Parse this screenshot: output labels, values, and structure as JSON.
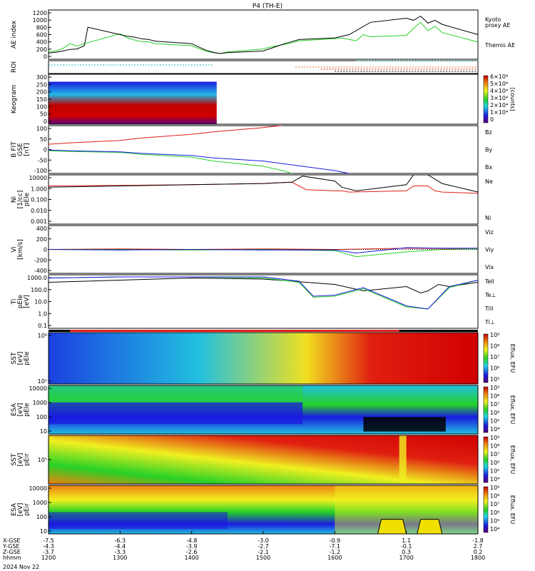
{
  "title": "P4 (TH-E)",
  "date_label": "2024 Nov 22",
  "colors": {
    "black": "#000000",
    "red": "#e0201a",
    "green": "#26d126",
    "blue": "#1a1ae0",
    "cyan": "#22b8b8",
    "orange": "#e07020"
  },
  "chart_data": [
    {
      "id": "ae",
      "type": "line",
      "ylabel": "AE index",
      "yticks": [
        "1200",
        "1000",
        "800",
        "600",
        "400",
        "200",
        "0"
      ],
      "ylim": [
        0,
        1200
      ],
      "legend": [
        {
          "label": "Kyoto",
          "color": "#26d126"
        },
        {
          "label": "proxy AE",
          "color": "#26d126"
        },
        {
          "label": "Themis AE",
          "color": "#000000"
        }
      ],
      "series": [
        {
          "name": "Kyoto",
          "color": "#26d126",
          "x": [
            1200,
            1210,
            1220,
            1230,
            1240,
            1250,
            1300,
            1310,
            1320,
            1330,
            1340,
            1350,
            1400,
            1410,
            1420,
            1430,
            1440,
            1450,
            1500,
            1510,
            1520,
            1530,
            1540,
            1550,
            1600,
            1610,
            1620,
            1630,
            1640,
            1650,
            1700,
            1710,
            1720,
            1730,
            1740,
            1750,
            1800
          ],
          "y": [
            180,
            200,
            260,
            380,
            320,
            380,
            620,
            520,
            470,
            430,
            420,
            380,
            330,
            260,
            200,
            160,
            140,
            180,
            250,
            300,
            330,
            360,
            400,
            450,
            500,
            520,
            480,
            450,
            600,
            550,
            580,
            750,
            900,
            700,
            800,
            650,
            420
          ]
        },
        {
          "name": "Themis AE",
          "color": "#000000",
          "x": [
            1200,
            1210,
            1220,
            1230,
            1240,
            1250,
            1255,
            1300,
            1310,
            1320,
            1330,
            1340,
            1350,
            1400,
            1410,
            1420,
            1430,
            1440,
            1450,
            1500,
            1510,
            1520,
            1530,
            1540,
            1550,
            1600,
            1610,
            1620,
            1630,
            1640,
            1650,
            1700,
            1710,
            1720,
            1730,
            1740,
            1750,
            1800
          ],
          "y": [
            150,
            170,
            200,
            240,
            250,
            330,
            780,
            600,
            560,
            540,
            500,
            480,
            440,
            380,
            300,
            220,
            170,
            140,
            160,
            200,
            260,
            320,
            380,
            430,
            480,
            520,
            560,
            600,
            700,
            800,
            900,
            1000,
            950,
            1050,
            880,
            950,
            850,
            600
          ]
        }
      ]
    },
    {
      "id": "roi",
      "type": "line",
      "ylabel": "ROI",
      "series": [
        {
          "name": "roi1",
          "color": "#22b8b8",
          "x": [
            1200,
            1430
          ],
          "y": [
            1,
            1
          ]
        },
        {
          "name": "roi2",
          "color": "#22b8b8",
          "x": [
            1630,
            1800
          ],
          "y": [
            3,
            3
          ]
        },
        {
          "name": "roi3",
          "color": "#e07020",
          "x": [
            1545,
            1800
          ],
          "y": [
            0,
            0
          ]
        },
        {
          "name": "roi4",
          "color": "#e0201a",
          "x": [
            1580,
            1800
          ],
          "y": [
            -1,
            -1
          ]
        },
        {
          "name": "roi5",
          "color": "#000000",
          "x": [
            1600,
            1800
          ],
          "y": [
            -2,
            -2
          ]
        }
      ]
    },
    {
      "id": "keogram",
      "type": "heatmap",
      "ylabel": "Keogram",
      "yticks": [
        "300",
        "250",
        "200",
        "150",
        "100",
        "50",
        "0"
      ],
      "ylim": [
        0,
        300
      ],
      "colorbar": {
        "label": "[counts]",
        "ticks": [
          "6×10⁴",
          "5×10⁴",
          "4×10⁴",
          "3×10⁴",
          "2×10⁴",
          "1×10⁴",
          "0"
        ]
      },
      "x_range": [
        1200,
        1435
      ]
    },
    {
      "id": "bfit",
      "type": "line",
      "ylabel": "B FIT",
      "ylabel2": "GSE",
      "ylabel3": "[nT]",
      "yticks": [
        "100",
        "50",
        "0",
        "-50",
        "-100"
      ],
      "ylim": [
        -100,
        100
      ],
      "legend": [
        {
          "label": "Bz",
          "color": "#e0201a"
        },
        {
          "label": "By",
          "color": "#26d126"
        },
        {
          "label": "Bx",
          "color": "#1a1ae0"
        }
      ],
      "series": [
        {
          "name": "Bz",
          "color": "#e0201a",
          "x": [
            1200,
            1230,
            1300,
            1330,
            1400,
            1430,
            1500,
            1525
          ],
          "y": [
            22,
            28,
            38,
            48,
            64,
            74,
            92,
            100
          ]
        },
        {
          "name": "By",
          "color": "#26d126",
          "x": [
            1200,
            1230,
            1300,
            1330,
            1400,
            1430,
            1500,
            1530,
            1540
          ],
          "y": [
            -5,
            -8,
            -12,
            -20,
            -32,
            -48,
            -70,
            -90,
            -100
          ]
        },
        {
          "name": "Bx",
          "color": "#1a1ae0",
          "x": [
            1200,
            1230,
            1300,
            1330,
            1400,
            1430,
            1500,
            1530,
            1600,
            1620
          ],
          "y": [
            -2,
            -5,
            -10,
            -16,
            -25,
            -35,
            -48,
            -60,
            -88,
            -100
          ]
        }
      ]
    },
    {
      "id": "density",
      "type": "line",
      "ylabel": "Ni",
      "ylabel2": "[1/cc]",
      "ylabel3": "pEle",
      "yticks": [
        "10000",
        "1.000",
        "0.100",
        "0.010",
        "0.001"
      ],
      "ylim_log10": [
        -3,
        1
      ],
      "legend": [
        {
          "label": "Ne",
          "color": "#e0201a"
        },
        {
          "label": "Ni",
          "color": "#000000"
        }
      ],
      "series": [
        {
          "name": "Ne",
          "color": "#e0201a",
          "x": [
            1200,
            1300,
            1400,
            1500,
            1540,
            1560,
            1600,
            1610,
            1620,
            1700,
            1710,
            1730,
            1740,
            1750,
            1800
          ],
          "y_log10": [
            0.1,
            0.15,
            0.2,
            0.3,
            0.4,
            -0.2,
            -0.3,
            -0.3,
            -0.4,
            -0.3,
            0.1,
            0.1,
            -0.3,
            -0.4,
            -0.5
          ]
        },
        {
          "name": "Ni",
          "color": "#000000",
          "x": [
            1200,
            1300,
            1400,
            1500,
            1540,
            1555,
            1600,
            1610,
            1630,
            1700,
            1710,
            1730,
            1750,
            1800
          ],
          "y_log10": [
            0.0,
            0.1,
            0.2,
            0.3,
            0.4,
            0.9,
            0.5,
            0.0,
            -0.3,
            0.2,
            1.0,
            1.0,
            0.3,
            -0.4
          ]
        }
      ]
    },
    {
      "id": "velocity",
      "type": "line",
      "ylabel": "Vi",
      "ylabel2": "[km/s]",
      "yticks": [
        "400",
        "200",
        "0",
        "-200",
        "-400"
      ],
      "ylim": [
        -400,
        400
      ],
      "legend": [
        {
          "label": "Viz",
          "color": "#e0201a"
        },
        {
          "label": "Viy",
          "color": "#26d126"
        },
        {
          "label": "Vix",
          "color": "#1a1ae0"
        }
      ],
      "series": [
        {
          "name": "Viz",
          "color": "#e0201a",
          "x": [
            1200,
            1300,
            1400,
            1500,
            1600,
            1700,
            1800
          ],
          "y": [
            0,
            10,
            0,
            10,
            0,
            20,
            10
          ]
        },
        {
          "name": "Viy",
          "color": "#26d126",
          "x": [
            1200,
            1300,
            1400,
            1500,
            1600,
            1630,
            1700,
            1750,
            1800
          ],
          "y": [
            0,
            0,
            -10,
            0,
            -20,
            -120,
            -40,
            0,
            10
          ]
        },
        {
          "name": "Vix",
          "color": "#1a1ae0",
          "x": [
            1200,
            1300,
            1400,
            1500,
            1600,
            1630,
            1700,
            1750,
            1800
          ],
          "y": [
            0,
            -10,
            0,
            -10,
            -10,
            -60,
            30,
            20,
            20
          ]
        }
      ]
    },
    {
      "id": "temp",
      "type": "line",
      "ylabel": "Ti",
      "ylabel2": "pEle",
      "ylabel3": "[eV]",
      "yticks": [
        "1000.0",
        "100.0",
        "10.0",
        "1.0",
        "0.1"
      ],
      "ylim_log10": [
        -1.5,
        3.5
      ],
      "legend": [
        {
          "label": "Tell",
          "color": "#000000"
        },
        {
          "label": "Te⊥",
          "color": "#e0201a"
        },
        {
          "label": "Till",
          "color": "#26d126"
        },
        {
          "label": "Ti⊥",
          "color": "#1a1ae0"
        }
      ],
      "series": [
        {
          "name": "Tell",
          "color": "#000000",
          "x": [
            1200,
            1300,
            1400,
            1500,
            1600,
            1640,
            1700,
            1720,
            1730,
            1745,
            1760,
            1800
          ],
          "y_log10": [
            2.8,
            3.0,
            3.2,
            3.1,
            2.6,
            2.0,
            2.4,
            1.8,
            2.0,
            2.6,
            2.4,
            2.8
          ]
        },
        {
          "name": "Till",
          "color": "#26d126",
          "x": [
            1200,
            1300,
            1400,
            1500,
            1550,
            1570,
            1600,
            1640,
            1700,
            1730,
            1760,
            1800
          ],
          "y_log10": [
            3.2,
            3.3,
            3.3,
            3.2,
            2.8,
            1.4,
            1.5,
            2.2,
            0.5,
            0.3,
            2.3,
            3.0
          ]
        },
        {
          "name": "Ti⊥",
          "color": "#1a1ae0",
          "x": [
            1200,
            1300,
            1400,
            1500,
            1550,
            1570,
            1600,
            1640,
            1700,
            1730,
            1760,
            1800
          ],
          "y_log10": [
            3.2,
            3.3,
            3.3,
            3.3,
            2.9,
            1.5,
            1.6,
            2.3,
            0.6,
            0.3,
            2.4,
            3.0
          ]
        }
      ]
    },
    {
      "id": "sst_e",
      "type": "heatmap",
      "ylabel": "SST",
      "ylabel2": "[eV]",
      "ylabel3": "pEle",
      "yticks": [
        "10⁶",
        "10⁵"
      ],
      "colorbar": {
        "label": "Eflux, EFU",
        "ticks": [
          "10⁹",
          "10⁸",
          "10⁷",
          "10⁶",
          "10⁵"
        ]
      }
    },
    {
      "id": "esa_e",
      "type": "heatmap",
      "ylabel": "ESA",
      "ylabel2": "[eV]",
      "ylabel3": "pEle",
      "yticks": [
        "10000",
        "1000",
        "100",
        "10"
      ],
      "colorbar": {
        "label": "Eflux, EFU",
        "ticks": [
          "10⁹",
          "10⁸",
          "10⁷",
          "10⁶",
          "10⁵",
          "10⁴"
        ]
      }
    },
    {
      "id": "sst_i",
      "type": "heatmap",
      "ylabel": "SST",
      "ylabel2": "[eV]",
      "ylabel3": "pEir",
      "yticks": [
        "10⁵"
      ],
      "colorbar": {
        "label": "Eflux, EFU",
        "ticks": [
          "10⁹",
          "10⁸",
          "10⁷",
          "10⁶",
          "10⁵",
          "10⁴"
        ]
      }
    },
    {
      "id": "esa_i",
      "type": "heatmap",
      "ylabel": "ESA",
      "ylabel2": "[eV]",
      "ylabel3": "pEir",
      "yticks": [
        "10000",
        "1000",
        "100",
        "10"
      ],
      "colorbar": {
        "label": "Eflux, EFU",
        "ticks": [
          "10⁹",
          "10⁸",
          "10⁷",
          "10⁶",
          "10⁵",
          "10⁴"
        ]
      }
    }
  ],
  "x_axis": {
    "xlim": [
      1200,
      1800
    ],
    "ticks": [
      {
        "x": 1200,
        "xgse": "-7.5",
        "ygse": "-4.3",
        "zgse": "-3.7",
        "hhmm": "1200"
      },
      {
        "x": 1300,
        "xgse": "-6.3",
        "ygse": "-4.4",
        "zgse": "-3.3",
        "hhmm": "1300"
      },
      {
        "x": 1400,
        "xgse": "-4.8",
        "ygse": "-3.9",
        "zgse": "-2.6",
        "hhmm": "1400"
      },
      {
        "x": 1500,
        "xgse": "-3.0",
        "ygse": "-2.7",
        "zgse": "-2.1",
        "hhmm": "1500"
      },
      {
        "x": 1600,
        "xgse": "-0.9",
        "ygse": "-7.1",
        "zgse": "-1.2",
        "hhmm": "1600"
      },
      {
        "x": 1700,
        "xgse": "1.1",
        "ygse": "-0.1",
        "zgse": "0.3",
        "hhmm": "1700"
      },
      {
        "x": 1800,
        "xgse": "-1.8",
        "ygse": "2.7",
        "zgse": "0.2",
        "hhmm": "1800"
      }
    ],
    "row_labels": [
      "X-GSE",
      "Y-GSE",
      "Z-GSE",
      "hhmm"
    ]
  }
}
